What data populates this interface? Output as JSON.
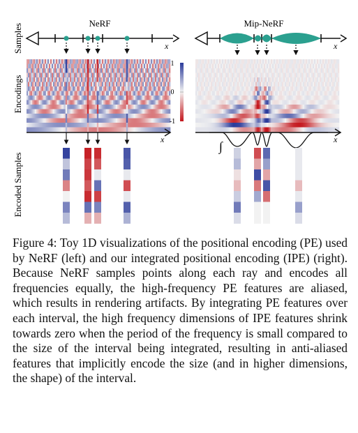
{
  "figure": {
    "panel_titles": {
      "left": "NeRF",
      "right": "Mip-NeRF"
    },
    "row_labels": {
      "samples": "Samples",
      "encodings": "Encodings",
      "encoded_samples": "Encoded Samples"
    },
    "axis_label": "x",
    "colorbar": {
      "max_label": "1",
      "mid_label": "0",
      "min_label": "-1",
      "colors": [
        "#2b3b9b",
        "#f2f2f2",
        "#c4161c"
      ]
    },
    "integral_symbol": "∫",
    "colors": {
      "sample_dot": "#2ba08f",
      "axis": "#111111"
    },
    "left_encoded_columns": [
      [
        0.95,
        0.25,
        0.65,
        -0.5,
        0.0,
        0.6,
        0.3
      ],
      [
        -0.95,
        -0.8,
        -0.85,
        -0.7,
        -0.9,
        0.7,
        -0.3
      ],
      [
        -0.9,
        -0.7,
        0.05,
        0.7,
        -0.8,
        0.6,
        -0.3
      ],
      [
        0.85,
        0.8,
        0.05,
        -0.75,
        0.05,
        0.8,
        0.35
      ]
    ],
    "right_encoded_columns": [
      [
        0.18,
        0.3,
        -0.08,
        -0.25,
        0.2,
        0.65,
        0.12
      ],
      [
        -0.75,
        -0.35,
        0.9,
        -0.55,
        0.4,
        0.0,
        0.0
      ],
      [
        0.75,
        0.45,
        -0.35,
        0.85,
        -0.6,
        0.0,
        0.0
      ],
      [
        0.05,
        0.05,
        0.05,
        -0.25,
        0.05,
        0.45,
        0.12
      ]
    ]
  },
  "caption": {
    "label": "Figure 4:",
    "text": "Toy 1D visualizations of the positional encoding (PE) used by NeRF (left) and our integrated positional encoding (IPE) (right). Because NeRF samples points along each ray and encodes all frequencies equally, the high-frequency PE features are aliased, which results in rendering artifacts. By integrating PE features over each interval, the high frequency dimensions of IPE features shrink towards zero when the period of the frequency is small compared to the size of the interval being integrated, resulting in anti-aliased features that implicitly encode the size (and in higher dimensions, the shape) of the interval."
  }
}
